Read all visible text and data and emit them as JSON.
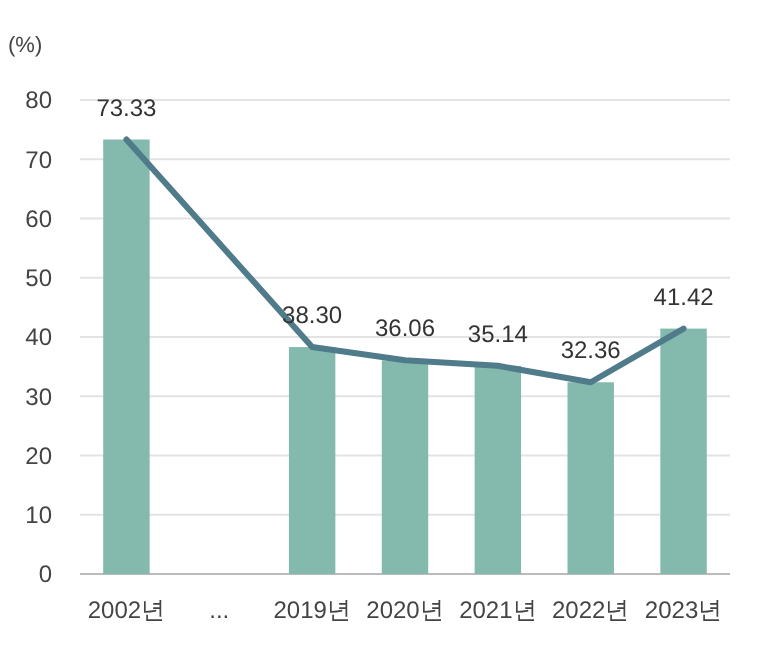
{
  "chart_data": {
    "type": "bar",
    "ylabel": "(%)",
    "categories": [
      "2002년",
      "...",
      "2019년",
      "2020년",
      "2021년",
      "2022년",
      "2023년"
    ],
    "series": [
      {
        "color": "#84b9ad",
        "values": [
          73.33,
          null,
          38.3,
          36.06,
          35.14,
          32.36,
          41.42
        ],
        "value_labels": [
          "73.33",
          null,
          "38.30",
          "36.06",
          "35.14",
          "32.36",
          "41.42"
        ]
      },
      {
        "type": "line",
        "color": "#4f7b8a",
        "values": [
          73.33,
          null,
          38.3,
          36.06,
          35.14,
          32.36,
          41.42
        ]
      }
    ],
    "ylim": [
      0,
      80
    ],
    "yticks": [
      0,
      10,
      20,
      30,
      40,
      50,
      60,
      70,
      80
    ],
    "grid": "y",
    "marker": "none",
    "line_style": "solid"
  }
}
